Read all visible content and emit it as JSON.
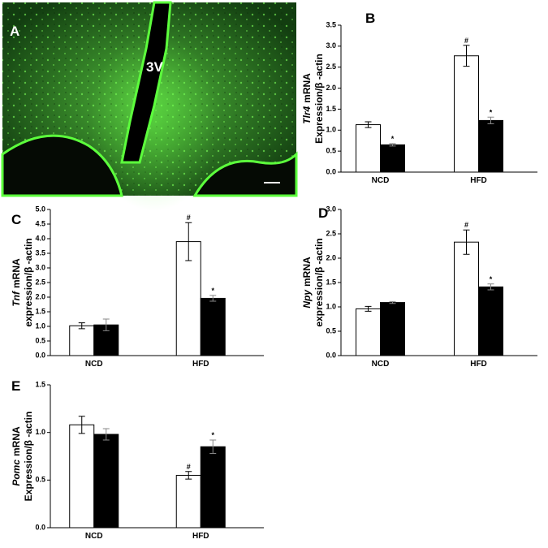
{
  "image_panel": {
    "label": "A",
    "annotation": "3V"
  },
  "chart_data": [
    {
      "type": "bar",
      "panel": "B",
      "ylabel_gene": "Tlr4",
      "ylabel_rest": "mRNA",
      "ylabel_line2": "Expression/β -actin",
      "categories": [
        "NCD",
        "HFD"
      ],
      "ylim": [
        0,
        3.5
      ],
      "yticks": [
        {
          "value": 0,
          "label": "0.0"
        },
        0.5,
        {
          "value": 1,
          "label": "1.0"
        },
        1.5,
        {
          "value": 2,
          "label": "2.0"
        },
        2.5,
        {
          "value": 3,
          "label": "3.0"
        },
        3.5
      ],
      "series": [
        {
          "color": "#ffffff",
          "values": [
            1.13,
            2.77
          ],
          "errors": [
            0.07,
            0.25
          ],
          "markers": [
            null,
            "#"
          ]
        },
        {
          "color": "#000000",
          "values": [
            0.65,
            1.23
          ],
          "errors": [
            0.03,
            0.08
          ],
          "markers": [
            "*",
            "*"
          ]
        }
      ]
    },
    {
      "type": "bar",
      "panel": "C",
      "ylabel_gene": "Tnf",
      "ylabel_rest": "mRNA",
      "ylabel_line2": "expression/β -actin",
      "categories": [
        "NCD",
        "HFD"
      ],
      "ylim": [
        0,
        5
      ],
      "yticks": [
        {
          "value": 0,
          "label": "0.0"
        },
        0.5,
        {
          "value": 1,
          "label": "1.0"
        },
        1.5,
        {
          "value": 2,
          "label": "2.0"
        },
        2.5,
        {
          "value": 3,
          "label": "3.0"
        },
        3.5,
        {
          "value": 4,
          "label": "4.0"
        },
        4.5,
        {
          "value": 5,
          "label": "5.0"
        }
      ],
      "series": [
        {
          "color": "#ffffff",
          "values": [
            1.02,
            3.9
          ],
          "errors": [
            0.1,
            0.65
          ],
          "markers": [
            null,
            "#"
          ]
        },
        {
          "color": "#000000",
          "values": [
            1.05,
            1.96
          ],
          "errors": [
            0.2,
            0.1
          ],
          "markers": [
            null,
            "*"
          ]
        }
      ]
    },
    {
      "type": "bar",
      "panel": "D",
      "ylabel_gene": "Npy",
      "ylabel_rest": "mRNA",
      "ylabel_line2": "expression/β -actin",
      "categories": [
        "NCD",
        "HFD"
      ],
      "ylim": [
        0,
        3
      ],
      "yticks": [
        {
          "value": 0,
          "label": "0.0"
        },
        0.5,
        {
          "value": 1,
          "label": "1.0"
        },
        1.5,
        {
          "value": 2,
          "label": "2.0"
        },
        2.5,
        {
          "value": 3,
          "label": "3.0"
        }
      ],
      "series": [
        {
          "color": "#ffffff",
          "values": [
            0.96,
            2.33
          ],
          "errors": [
            0.05,
            0.25
          ],
          "markers": [
            null,
            "#"
          ]
        },
        {
          "color": "#000000",
          "values": [
            1.09,
            1.41
          ],
          "errors": [
            0.02,
            0.06
          ],
          "markers": [
            null,
            "*"
          ]
        }
      ]
    },
    {
      "type": "bar",
      "panel": "E",
      "ylabel_gene": "Pomc",
      "ylabel_rest": "mRNA",
      "ylabel_line2": "Expression/β -actin",
      "categories": [
        "NCD",
        "HFD"
      ],
      "ylim": [
        0,
        1.5
      ],
      "yticks": [
        {
          "value": 0,
          "label": "0.0"
        },
        0.5,
        {
          "value": 1,
          "label": "1.0"
        },
        1.5
      ],
      "series": [
        {
          "color": "#ffffff",
          "values": [
            1.08,
            0.55
          ],
          "errors": [
            0.09,
            0.04
          ],
          "markers": [
            null,
            "#"
          ]
        },
        {
          "color": "#000000",
          "values": [
            0.98,
            0.85
          ],
          "errors": [
            0.06,
            0.07
          ],
          "markers": [
            null,
            "*"
          ]
        }
      ]
    }
  ]
}
